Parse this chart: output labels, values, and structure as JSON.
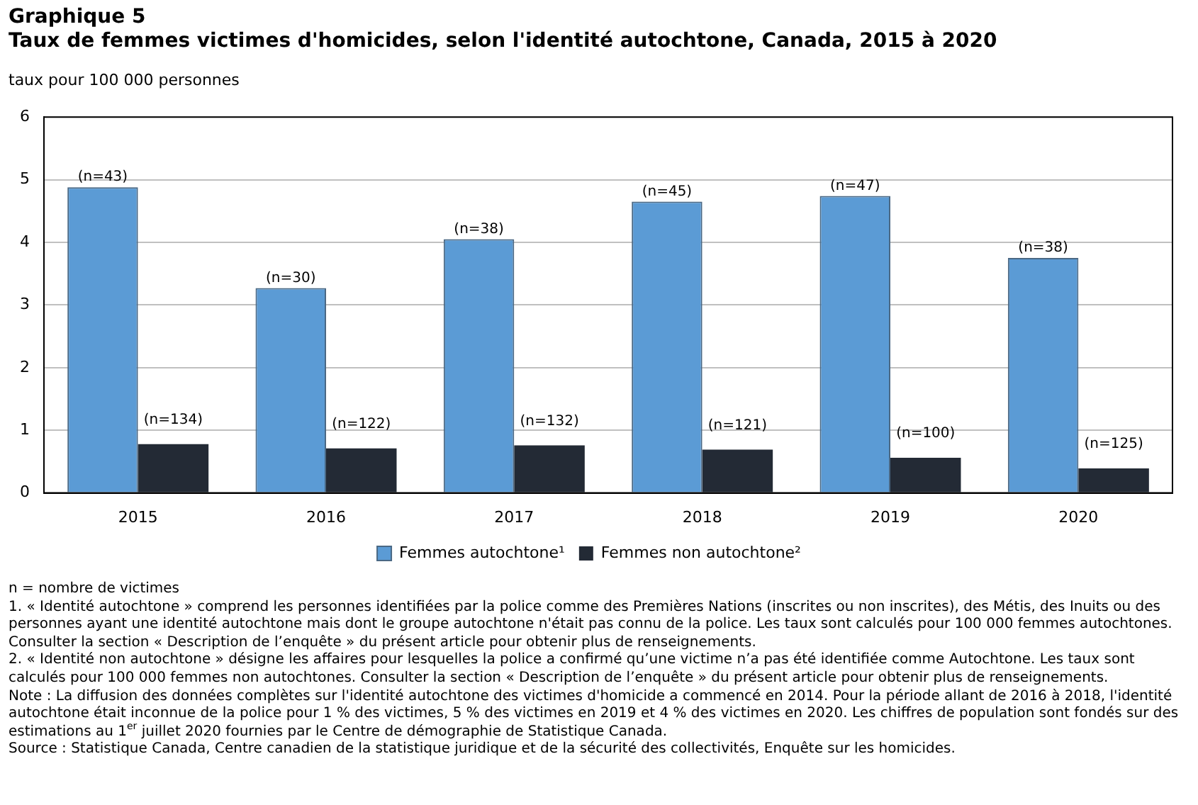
{
  "chart_data": {
    "type": "bar",
    "title": "Graphique 5",
    "subtitle": "Taux de femmes victimes d'homicides, selon l'identité autochtone, Canada, 2015 à 2020",
    "ylabel": "taux pour 100 000 personnes",
    "categories": [
      "2015",
      "2016",
      "2017",
      "2018",
      "2019",
      "2020"
    ],
    "series": [
      {
        "name": "Femmes autochtone¹",
        "color": "#5b9bd5",
        "values": [
          4.88,
          3.27,
          4.05,
          4.65,
          4.74,
          3.75
        ]
      },
      {
        "name": "Femmes non autochtone²",
        "color": "#232a35",
        "values": [
          0.78,
          0.71,
          0.76,
          0.69,
          0.56,
          0.39
        ]
      }
    ],
    "ylim": [
      0,
      6
    ],
    "yticks": [
      0,
      1,
      2,
      3,
      4,
      5,
      6
    ],
    "grid": "y",
    "legend": "bottom",
    "annotations": [
      {
        "text": "(n=43)",
        "x": "2015",
        "y": 4.88
      },
      {
        "text": "(n=30)",
        "x": "2016",
        "y": 3.27
      },
      {
        "text": "(n=38)",
        "x": "2017",
        "y": 4.05
      },
      {
        "text": "(n=45)",
        "x": "2018",
        "y": 4.65
      },
      {
        "text": "(n=47)",
        "x": "2019",
        "y": 4.74
      },
      {
        "text": "(n=38)",
        "x": "2020",
        "y": 3.75
      },
      {
        "text": "(n=134)",
        "x": "2015",
        "y": 0.78
      },
      {
        "text": "(n=122)",
        "x": "2016",
        "y": 0.71
      },
      {
        "text": "(n=132)",
        "x": "2017",
        "y": 0.76
      },
      {
        "text": "(n=121)",
        "x": "2018",
        "y": 0.69
      },
      {
        "text": "(n=100)",
        "x": "2019",
        "y": 0.56
      },
      {
        "text": "(n=125)",
        "x": "2020",
        "y": 0.39
      },
      "n = nombre de victimes",
      "1. « Identité autochtone » comprend les personnes identifiées par la police comme des Premières Nations (inscrites ou non inscrites), des Métis, des Inuits ou des personnes ayant une identité autochtone mais dont le groupe autochtone n'était pas connu de la police. Les taux sont calculés pour 100 000 femmes autochtones. Consulter la section « Description de l’enquête » du présent article pour obtenir plus de renseignements.",
      "2. « Identité non autochtone » désigne les affaires pour lesquelles la police a confirmé qu’une victime n’a pas été identifiée comme Autochtone. Les taux sont calculés pour 100 000 femmes non autochtones. Consulter la section « Description de l’enquête » du présent article pour obtenir plus de renseignements.",
      "Note : La diffusion des données complètes sur l'identité autochtone des victimes d'homicide a commencé en 2014. Pour la période allant de 2016 à 2018, l'identité autochtone était inconnue de la police pour 1 % des victimes, 5 % des victimes en 2019 et 4 % des victimes en 2020. Les chiffres de population sont fondés sur des estimations au 1$^{er}$ juillet 2020 fournies par le Centre de démographie de Statistique Canada.",
      "Source : Statistique Canada, Centre canadien de la statistique juridique et de la sécurité des collectivités, Enquête sur les homicides."
    ]
  }
}
